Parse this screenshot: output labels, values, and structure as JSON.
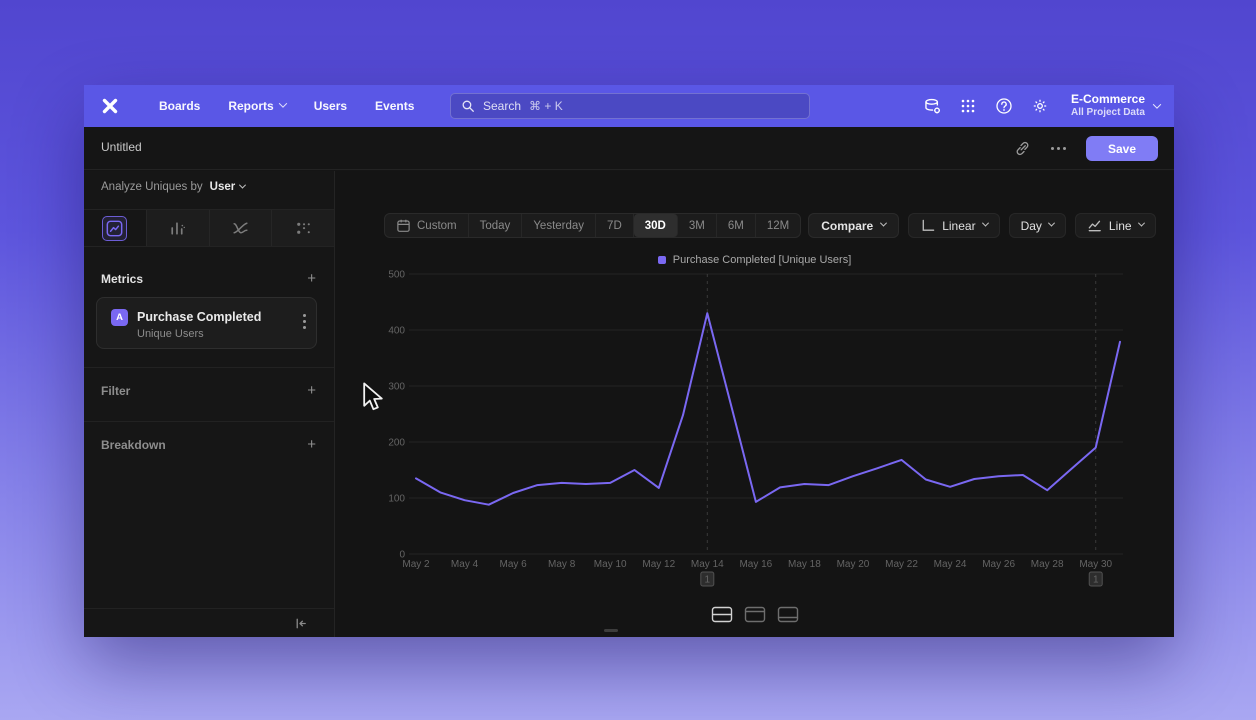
{
  "colors": {
    "accent": "#7a68f2",
    "line": "#7a68f2",
    "save": "#807cf5",
    "nav": "#5a57e6"
  },
  "nav": {
    "items": [
      {
        "label": "Boards",
        "has_chevron": false
      },
      {
        "label": "Reports",
        "has_chevron": true
      },
      {
        "label": "Users",
        "has_chevron": false
      },
      {
        "label": "Events",
        "has_chevron": false
      }
    ],
    "search": {
      "placeholder": "Search",
      "shortcut": "⌘ + K"
    },
    "project": {
      "name": "E-Commerce",
      "subtitle": "All Project Data"
    }
  },
  "header": {
    "title": "Untitled",
    "save_label": "Save"
  },
  "sidebar": {
    "analyze_label": "Analyze Uniques by",
    "analyze_value": "User",
    "tabs": [
      {
        "name": "line-chart",
        "selected": true
      },
      {
        "name": "bar-chart",
        "selected": false
      },
      {
        "name": "retention",
        "selected": false
      },
      {
        "name": "flows",
        "selected": false
      }
    ],
    "metrics": {
      "label": "Metrics",
      "add": "+"
    },
    "metric_card": {
      "badge": "A",
      "title": "Purchase Completed",
      "subtitle": "Unique Users"
    },
    "filter": {
      "label": "Filter",
      "add": "+"
    },
    "breakdown": {
      "label": "Breakdown",
      "add": "+"
    }
  },
  "toolbar": {
    "ranges": [
      "Custom",
      "Today",
      "Yesterday",
      "7D",
      "30D",
      "3M",
      "6M",
      "12M"
    ],
    "selected_range": "30D",
    "compare": "Compare",
    "scale": "Linear",
    "interval": "Day",
    "chart_type": "Line"
  },
  "chart_data": {
    "type": "line",
    "title": "",
    "xlabel": "",
    "ylabel": "",
    "ylim": [
      0,
      500
    ],
    "yticks": [
      0,
      100,
      200,
      300,
      400,
      500
    ],
    "grid": true,
    "legend_position": "top-center",
    "x": [
      "May 2",
      "May 3",
      "May 4",
      "May 5",
      "May 6",
      "May 7",
      "May 8",
      "May 9",
      "May 10",
      "May 11",
      "May 12",
      "May 13",
      "May 14",
      "May 15",
      "May 16",
      "May 17",
      "May 18",
      "May 19",
      "May 20",
      "May 21",
      "May 22",
      "May 23",
      "May 24",
      "May 25",
      "May 26",
      "May 27",
      "May 28",
      "May 29",
      "May 30",
      "May 31"
    ],
    "xticks": [
      "May 2",
      "May 4",
      "May 6",
      "May 8",
      "May 10",
      "May 12",
      "May 14",
      "May 16",
      "May 18",
      "May 20",
      "May 22",
      "May 24",
      "May 26",
      "May 28",
      "May 30"
    ],
    "series": [
      {
        "name": "Purchase Completed [Unique Users]",
        "color": "#7a68f2",
        "values": [
          135,
          110,
          96,
          88,
          109,
          123,
          127,
          125,
          127,
          150,
          118,
          248,
          430,
          262,
          93,
          119,
          125,
          123,
          139,
          153,
          168,
          133,
          120,
          134,
          139,
          141,
          114,
          152,
          190,
          379
        ]
      }
    ],
    "annotations": [
      {
        "x": "May 14",
        "label": "1"
      },
      {
        "x": "May 30",
        "label": "1"
      }
    ]
  }
}
